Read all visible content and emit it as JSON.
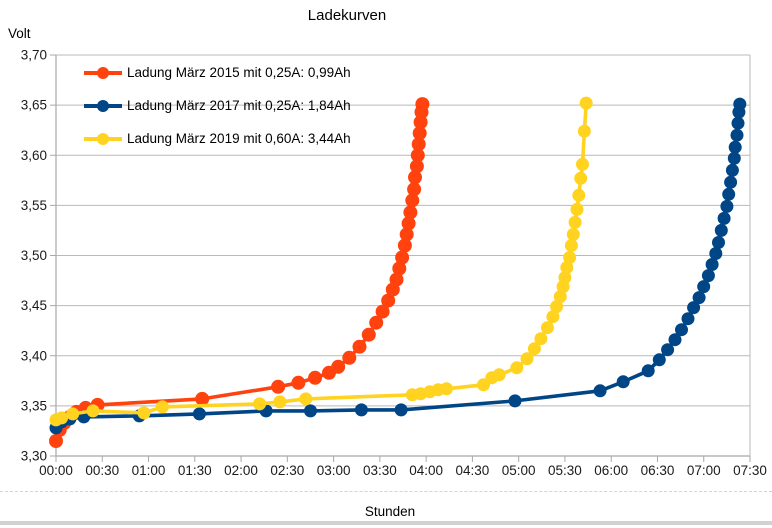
{
  "title": "Ladekurven",
  "axes": {
    "y_title": "Volt",
    "x_title": "Stunden",
    "y_ticks": [
      {
        "label": "3,70",
        "value": 3.7
      },
      {
        "label": "3,65",
        "value": 3.65
      },
      {
        "label": "3,60",
        "value": 3.6
      },
      {
        "label": "3,55",
        "value": 3.55
      },
      {
        "label": "3,50",
        "value": 3.5
      },
      {
        "label": "3,45",
        "value": 3.45
      },
      {
        "label": "3,40",
        "value": 3.4
      },
      {
        "label": "3,35",
        "value": 3.35
      },
      {
        "label": "3,30",
        "value": 3.3
      }
    ],
    "x_ticks": [
      {
        "label": "00:00",
        "hours": 0.0
      },
      {
        "label": "00:30",
        "hours": 0.5
      },
      {
        "label": "01:00",
        "hours": 1.0
      },
      {
        "label": "01:30",
        "hours": 1.5
      },
      {
        "label": "02:00",
        "hours": 2.0
      },
      {
        "label": "02:30",
        "hours": 2.5
      },
      {
        "label": "03:00",
        "hours": 3.0
      },
      {
        "label": "03:30",
        "hours": 3.5
      },
      {
        "label": "04:00",
        "hours": 4.0
      },
      {
        "label": "04:30",
        "hours": 4.5
      },
      {
        "label": "05:00",
        "hours": 5.0
      },
      {
        "label": "05:30",
        "hours": 5.5
      },
      {
        "label": "06:00",
        "hours": 6.0
      },
      {
        "label": "06:30",
        "hours": 6.5
      },
      {
        "label": "07:00",
        "hours": 7.0
      },
      {
        "label": "07:30",
        "hours": 7.5
      }
    ]
  },
  "chart_data": {
    "type": "line",
    "title": "Ladekurven",
    "xlabel": "Stunden",
    "ylabel": "Volt",
    "xlim_hours": [
      0,
      7.5
    ],
    "ylim": [
      3.3,
      3.7
    ],
    "y_tick_step": 0.05,
    "x_tick_step_minutes": 30,
    "grid": "horizontal-only",
    "legend_position": "top-left-inside",
    "series": [
      {
        "label": "Ladung März 2015 mit 0,25A: 0,99Ah",
        "color": "#ff420e",
        "marker_radius": 7,
        "points": [
          [
            0.0,
            3.315
          ],
          [
            0.04,
            3.326
          ],
          [
            0.09,
            3.333
          ],
          [
            0.15,
            3.339
          ],
          [
            0.22,
            3.344
          ],
          [
            0.32,
            3.348
          ],
          [
            0.45,
            3.351
          ],
          [
            1.58,
            3.357
          ],
          [
            2.4,
            3.369
          ],
          [
            2.62,
            3.373
          ],
          [
            2.8,
            3.378
          ],
          [
            2.95,
            3.383
          ],
          [
            3.05,
            3.389
          ],
          [
            3.17,
            3.398
          ],
          [
            3.28,
            3.409
          ],
          [
            3.38,
            3.421
          ],
          [
            3.46,
            3.433
          ],
          [
            3.53,
            3.444
          ],
          [
            3.59,
            3.455
          ],
          [
            3.64,
            3.466
          ],
          [
            3.68,
            3.476
          ],
          [
            3.71,
            3.487
          ],
          [
            3.74,
            3.498
          ],
          [
            3.77,
            3.51
          ],
          [
            3.79,
            3.521
          ],
          [
            3.81,
            3.532
          ],
          [
            3.83,
            3.543
          ],
          [
            3.85,
            3.555
          ],
          [
            3.87,
            3.566
          ],
          [
            3.88,
            3.578
          ],
          [
            3.9,
            3.589
          ],
          [
            3.91,
            3.6
          ],
          [
            3.92,
            3.611
          ],
          [
            3.93,
            3.622
          ],
          [
            3.94,
            3.633
          ],
          [
            3.95,
            3.643
          ],
          [
            3.96,
            3.651
          ]
        ]
      },
      {
        "label": "Ladung März 2017 mit 0,25A: 1,84Ah",
        "color": "#004586",
        "marker_radius": 6.5,
        "points": [
          [
            0.0,
            3.328
          ],
          [
            0.06,
            3.334
          ],
          [
            0.15,
            3.337
          ],
          [
            0.3,
            3.339
          ],
          [
            0.9,
            3.34
          ],
          [
            1.55,
            3.342
          ],
          [
            2.27,
            3.345
          ],
          [
            2.75,
            3.345
          ],
          [
            3.3,
            3.346
          ],
          [
            3.73,
            3.346
          ],
          [
            4.96,
            3.355
          ],
          [
            5.88,
            3.365
          ],
          [
            6.13,
            3.374
          ],
          [
            6.4,
            3.385
          ],
          [
            6.52,
            3.396
          ],
          [
            6.61,
            3.406
          ],
          [
            6.69,
            3.416
          ],
          [
            6.76,
            3.426
          ],
          [
            6.83,
            3.437
          ],
          [
            6.89,
            3.448
          ],
          [
            6.95,
            3.458
          ],
          [
            7.0,
            3.469
          ],
          [
            7.05,
            3.48
          ],
          [
            7.09,
            3.491
          ],
          [
            7.13,
            3.502
          ],
          [
            7.16,
            3.513
          ],
          [
            7.19,
            3.525
          ],
          [
            7.22,
            3.537
          ],
          [
            7.25,
            3.549
          ],
          [
            7.27,
            3.561
          ],
          [
            7.29,
            3.573
          ],
          [
            7.31,
            3.585
          ],
          [
            7.33,
            3.597
          ],
          [
            7.34,
            3.608
          ],
          [
            7.36,
            3.62
          ],
          [
            7.37,
            3.632
          ],
          [
            7.38,
            3.643
          ],
          [
            7.39,
            3.651
          ]
        ]
      },
      {
        "label": "Ladung März 2019 mit 0,60A: 3,44Ah",
        "color": "#ffd320",
        "marker_radius": 6.5,
        "points": [
          [
            0.0,
            3.336
          ],
          [
            0.06,
            3.338
          ],
          [
            0.18,
            3.342
          ],
          [
            0.4,
            3.345
          ],
          [
            0.95,
            3.343
          ],
          [
            1.15,
            3.349
          ],
          [
            2.2,
            3.352
          ],
          [
            2.42,
            3.354
          ],
          [
            2.7,
            3.357
          ],
          [
            3.85,
            3.361
          ],
          [
            3.94,
            3.362
          ],
          [
            4.04,
            3.364
          ],
          [
            4.13,
            3.366
          ],
          [
            4.22,
            3.367
          ],
          [
            4.62,
            3.371
          ],
          [
            4.71,
            3.378
          ],
          [
            4.79,
            3.381
          ],
          [
            4.98,
            3.388
          ],
          [
            5.09,
            3.397
          ],
          [
            5.17,
            3.407
          ],
          [
            5.24,
            3.417
          ],
          [
            5.31,
            3.428
          ],
          [
            5.37,
            3.439
          ],
          [
            5.41,
            3.449
          ],
          [
            5.45,
            3.459
          ],
          [
            5.48,
            3.469
          ],
          [
            5.5,
            3.478
          ],
          [
            5.52,
            3.488
          ],
          [
            5.55,
            3.498
          ],
          [
            5.57,
            3.51
          ],
          [
            5.59,
            3.521
          ],
          [
            5.61,
            3.533
          ],
          [
            5.63,
            3.546
          ],
          [
            5.65,
            3.56
          ],
          [
            5.67,
            3.577
          ],
          [
            5.69,
            3.591
          ],
          [
            5.71,
            3.624
          ],
          [
            5.73,
            3.652
          ]
        ]
      }
    ]
  },
  "colors": {
    "grid": "#b9b9b9",
    "axis": "#a8a8a8",
    "tick_text": "#1a1a1a",
    "bottom_bar": "#d2d2d2"
  }
}
